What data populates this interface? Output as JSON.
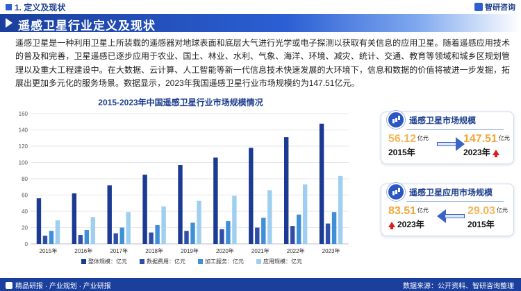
{
  "header": {
    "section_label": "1. 定义及现状",
    "brand": "智研咨询"
  },
  "banner": {
    "title": "遥感卫星行业定义及现状"
  },
  "intro": {
    "text": "遥感卫星是一种利用卫星上所装载的遥感器对地球表面和底层大气进行光学或电子探测以获取有关信息的应用卫星。随着遥感应用技术的普及和完善，卫星遥感已逐步应用于农业、国土、林业、水利、气象、海洋、环境、减灾、统计、交通、教育等领域和城乡区规划管理以及重大工程建设中。在大数据、云计算、人工智能等新一代信息技术快速发展的大环境下，信息和数据的价值将被进一步发掘，拓展出更加多元化的服务场景。数据显示，2023年我国遥感卫星行业市场规模约为147.51亿元。"
  },
  "chart_data": {
    "type": "bar",
    "title": "2015-2023年中国遥感卫星行业市场规模情况",
    "categories": [
      "2015年",
      "2016年",
      "2017年",
      "2018年",
      "2019年",
      "2020年",
      "2021年",
      "2022年",
      "2023年"
    ],
    "yticks": [
      "0",
      "20",
      "40",
      "60",
      "80",
      "100",
      "120",
      "140",
      "160"
    ],
    "ylim": [
      0,
      160
    ],
    "grid": true,
    "legend_position": "bottom",
    "series": [
      {
        "name": "整体规模：亿元",
        "color": "#1b3a93",
        "values": [
          56,
          62,
          72,
          85,
          97,
          106,
          118,
          131,
          147.51
        ]
      },
      {
        "name": "数据费用：亿元",
        "color": "#2f4ea8",
        "values": [
          10,
          11,
          13,
          14,
          16,
          18,
          20,
          22,
          25
        ]
      },
      {
        "name": "加工服务：亿元",
        "color": "#3f8fd8",
        "values": [
          16,
          17,
          20,
          23,
          26,
          28,
          32,
          36,
          39
        ]
      },
      {
        "name": "应用规模：亿元",
        "color": "#9fcff0",
        "values": [
          29,
          33,
          39,
          46,
          53,
          59,
          66,
          73,
          83.51
        ]
      }
    ]
  },
  "panel_market": {
    "title": "遥感卫星市场规模",
    "from_value": "56.12",
    "from_unit": "亿元",
    "from_year": "2015年",
    "to_value": "147.51",
    "to_unit": "亿元",
    "to_year": "2023年",
    "icon": "chart-icon",
    "arrow_color": "#d81e1e"
  },
  "panel_application": {
    "title": "遥感卫星应用市场规模",
    "new_value": "83.51",
    "new_unit": "亿元",
    "new_year": "2023年",
    "old_value": "29.03",
    "old_unit": "亿元",
    "old_year": "2015年",
    "icon": "chart-icon"
  },
  "footer": {
    "left": "精品研报 · 产业规划 · 产业研报",
    "right": "数据来源：公开资料、智研咨询整理"
  }
}
